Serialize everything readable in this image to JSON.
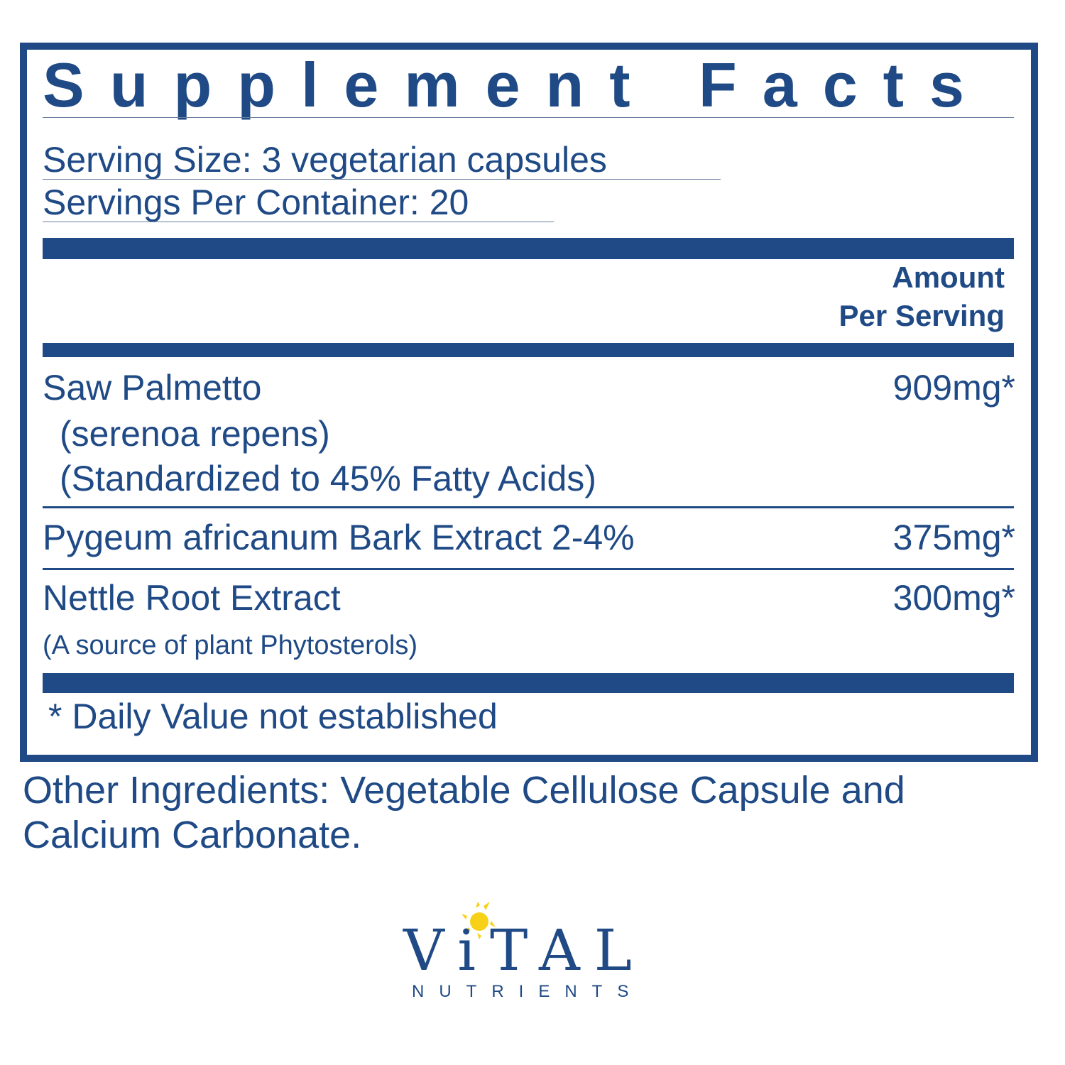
{
  "label": {
    "title": "Supplement Facts",
    "serving_size": "Serving Size: 3 vegetarian capsules",
    "servings_per_container": "Servings Per Container: 20",
    "amount_header_line1": "Amount",
    "amount_header_line2": "Per Serving",
    "ingredients": [
      {
        "name": "Saw Palmetto",
        "details": [
          "(serenoa repens)",
          "(Standardized to 45% Fatty Acids)"
        ],
        "amount": "909mg*"
      },
      {
        "name": "Pygeum africanum Bark Extract 2-4%",
        "details": [],
        "amount": "375mg*"
      },
      {
        "name": "Nettle Root Extract",
        "details": [
          "(A source of plant Phytosterols)"
        ],
        "amount": "300mg*"
      }
    ],
    "footnote": "* Daily Value not established"
  },
  "other_ingredients": {
    "line1": "Other Ingredients: Vegetable Cellulose Capsule and",
    "line2": "Calcium Carbonate."
  },
  "brand": {
    "name": "ViTAL",
    "tagline": "NUTRIENTS",
    "icon": "sun-icon",
    "colors": {
      "primary": "#1f4a85",
      "sun": "#f7d117"
    }
  }
}
